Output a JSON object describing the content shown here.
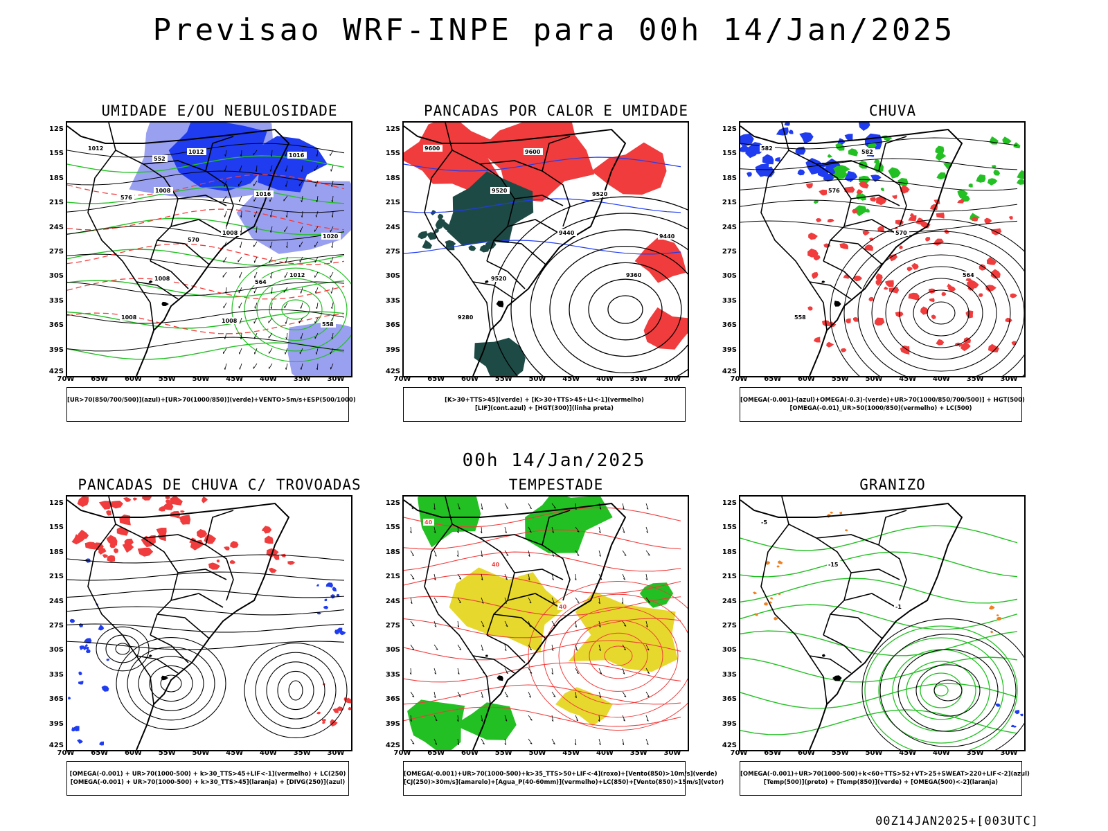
{
  "title": "Previsao WRF-INPE  para 00h 14/Jan/2025",
  "mid_title": "00h 14/Jan/2025",
  "footer": "00Z14JAN2025+[003UTC]",
  "axis": {
    "lat_labels": [
      "12S",
      "15S",
      "18S",
      "21S",
      "24S",
      "27S",
      "30S",
      "33S",
      "36S",
      "39S",
      "42S"
    ],
    "lon_labels": [
      "70W",
      "65W",
      "60W",
      "55W",
      "50W",
      "45W",
      "40W",
      "35W",
      "30W"
    ]
  },
  "colors": {
    "blue": "#1f3cf0",
    "light_blue": "#9aa0f0",
    "green": "#22c022",
    "red": "#f03c3c",
    "dark_teal": "#1e4a46",
    "yellow": "#e6d82c",
    "orange": "#f08020",
    "black": "#000000"
  },
  "panels": [
    {
      "id": "umidade",
      "title": "UMIDADE E/OU NEBULOSIDADE",
      "legend": [
        "[UR>70(850/700/500)](azul)+[UR>70(1000/850)](verde)+VENTO>5m/s+ESP(500/1000)"
      ],
      "contour_labels": [
        "1012",
        "1008",
        "1008",
        "1012",
        "1008",
        "1012",
        "1016",
        "1020",
        "1008",
        "1008",
        "1016",
        "576",
        "570",
        "564",
        "558",
        "552"
      ]
    },
    {
      "id": "pancadas",
      "title": "PANCADAS POR CALOR E UMIDADE",
      "legend": [
        "[K>30+TTS>45](verde) + [K>30+TTS>45+LI<-1](vermelho)",
        "[LIF](cont.azul) + [HGT(300)](linha preta)"
      ],
      "contour_labels": [
        "9600",
        "9520",
        "9440",
        "9360",
        "9280",
        "9600",
        "9520",
        "9440",
        "9520"
      ]
    },
    {
      "id": "chuva",
      "title": "CHUVA",
      "legend": [
        "[OMEGA(-0.001)-(azul)+OMEGA(-0.3)-(verde)+UR>70(1000/850/700/500)] + HGT(500)",
        "[OMEGA(-0.01)_UR>50(1000/850)(vermelho) + LC(500)"
      ],
      "contour_labels": [
        "582",
        "576",
        "570",
        "564",
        "558",
        "582"
      ]
    },
    {
      "id": "trovoadas",
      "title": "PANCADAS DE CHUVA C/ TROVOADAS",
      "legend": [
        "[OMEGA(-0.001) + UR>70(1000-500) + k>30_TTS>45+LIF<-1](vermelho) + LC(250)",
        "[OMEGA(-0.001) + UR>70(1000-500) + k>30_TTS>45](laranja) + [DIVG(250)](azul)"
      ],
      "contour_labels": []
    },
    {
      "id": "tempestade",
      "title": "TEMPESTADE",
      "legend": [
        "[OMEGA(-0.001)+UR>70(1000-500)+k>35_TTS>50+LIF<-4](roxo)+[Vento(850)>10m/s](verde)",
        "[CJ(250)>30m/s](amarelo)+[Agua_P(40-60mm)](vermelho)+LC(850)+[Vento(850)>15m/s](vetor)"
      ],
      "contour_labels": [
        "40",
        "40",
        "40"
      ]
    },
    {
      "id": "granizo",
      "title": "GRANIZO",
      "legend": [
        "[OMEGA(-0.001)+UR>70(1000-500)+k<60+TTS>52+VT>25+SWEAT>220+LIF<-2](azul)",
        "[Temp(500)](preto) + [Temp(850)](verde) + [OMEGA(500)<-2](laranja)"
      ],
      "contour_labels": [
        "-5",
        "-15",
        "-1"
      ]
    }
  ]
}
